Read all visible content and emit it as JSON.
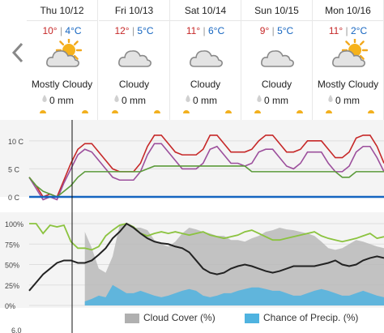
{
  "forecast": {
    "days": [
      {
        "name": "Thu 10/12",
        "high": "10°",
        "low": "4°C",
        "icon": "partly-cloudy-icon",
        "condition": "Mostly Cloudy",
        "precip": "0 mm"
      },
      {
        "name": "Fri 10/13",
        "high": "12°",
        "low": "5°C",
        "icon": "cloud-icon",
        "condition": "Cloudy",
        "precip": "0 mm"
      },
      {
        "name": "Sat 10/14",
        "high": "11°",
        "low": "6°C",
        "icon": "cloud-icon",
        "condition": "Cloudy",
        "precip": "0 mm"
      },
      {
        "name": "Sun 10/15",
        "high": "9°",
        "low": "5°C",
        "icon": "cloud-icon",
        "condition": "Cloudy",
        "precip": "0 mm"
      },
      {
        "name": "Mon 10/16",
        "high": "11°",
        "low": "2°C",
        "icon": "partly-cloudy-icon",
        "condition": "Mostly Cloudy",
        "precip": "0 mm"
      }
    ],
    "separator": "|"
  },
  "colors": {
    "temperature": "#c62828",
    "feels_like": "#9c4f9c",
    "dew_point": "#5b9a3a",
    "precip_line": "#1565c0",
    "cloud_fill": "#b8b8b8",
    "chance_fill": "#4fb3e0",
    "humidity": "#8bc33f",
    "black_line": "#222222",
    "high_temp": "#c62828",
    "low_temp": "#1565c0"
  },
  "chart_data": [
    {
      "type": "line",
      "y_tick_labels": [
        "10 C",
        "5 C",
        "0 C"
      ],
      "ylim": [
        0,
        12
      ],
      "days": [
        "Thu 10/12",
        "Fri 10/13",
        "Sat 10/14",
        "Sun 10/15",
        "Mon 10/16"
      ],
      "series": [
        {
          "values": [
            3.5,
            2,
            0,
            0.5,
            0,
            3,
            6,
            8.5,
            9.5,
            9.5,
            8,
            6.5,
            5,
            4.5,
            4.5,
            4.5,
            6,
            9,
            11,
            11,
            9.5,
            8,
            7.5,
            7.5,
            7.5,
            8.5,
            11,
            11,
            9.5,
            8,
            8,
            8,
            8.5,
            10,
            11,
            11,
            9.5,
            8,
            8,
            8.5,
            10,
            10,
            10,
            8.5,
            7,
            7,
            8,
            10.5,
            11,
            11,
            9,
            6
          ]
        },
        {
          "values": [
            3.5,
            1.5,
            -0.5,
            0,
            -0.5,
            2.5,
            5,
            7.5,
            8.5,
            8,
            6.5,
            5,
            3.5,
            3,
            3,
            3,
            4.5,
            7.5,
            9.5,
            9.5,
            8,
            6.5,
            5,
            5,
            5,
            6,
            8.5,
            9,
            7.5,
            6,
            6,
            5.5,
            6,
            8,
            8.5,
            8.5,
            7,
            5.5,
            5,
            6,
            8,
            8,
            8,
            6,
            4.5,
            4.5,
            5.5,
            8,
            9,
            9,
            7,
            4.5
          ]
        },
        {
          "values": [
            3.5,
            2,
            1,
            0.5,
            0,
            1,
            2,
            3.5,
            4.5,
            4.5,
            4.5,
            4.5,
            4.5,
            4.5,
            4.5,
            4.5,
            4.5,
            5,
            5.5,
            5.5,
            5.5,
            5.5,
            5.5,
            5.5,
            5.5,
            5.5,
            5.5,
            5.5,
            5.5,
            5.5,
            5.5,
            5.5,
            4.5,
            4.5,
            4.5,
            4.5,
            4.5,
            4.5,
            4.5,
            4.5,
            4.5,
            4.5,
            4.5,
            4.5,
            4.5,
            3.5,
            3.5,
            4.5,
            4.5,
            4.5,
            4.5,
            4.5
          ]
        },
        {
          "values": [
            0,
            0,
            0,
            0,
            0,
            0,
            0,
            0,
            0,
            0,
            0,
            0,
            0,
            0,
            0,
            0,
            0,
            0,
            0,
            0,
            0,
            0,
            0,
            0,
            0,
            0,
            0,
            0,
            0,
            0,
            0,
            0,
            0,
            0,
            0,
            0,
            0,
            0,
            0,
            0,
            0,
            0,
            0,
            0,
            0,
            0,
            0,
            0,
            0,
            0,
            0,
            0
          ]
        }
      ]
    },
    {
      "type": "area",
      "y_tick_labels": [
        "100%",
        "75%",
        "50%",
        "25%",
        "0%"
      ],
      "ylim": [
        0,
        100
      ],
      "series": [
        {
          "name": "Cloud Cover (%)",
          "values": [
            null,
            null,
            null,
            null,
            null,
            null,
            null,
            null,
            90,
            70,
            45,
            40,
            60,
            98,
            100,
            95,
            95,
            92,
            80,
            75,
            72,
            78,
            88,
            95,
            93,
            90,
            88,
            85,
            85,
            80,
            80,
            78,
            82,
            85,
            90,
            92,
            95,
            93,
            92,
            90,
            88,
            85,
            78,
            70,
            68,
            70,
            75,
            80,
            78,
            75,
            72,
            70
          ]
        },
        {
          "name": "Chance of Precip. (%)",
          "values": [
            null,
            null,
            null,
            null,
            null,
            null,
            null,
            null,
            5,
            8,
            12,
            10,
            25,
            20,
            15,
            15,
            18,
            15,
            12,
            10,
            12,
            15,
            18,
            20,
            18,
            12,
            10,
            12,
            15,
            15,
            18,
            20,
            22,
            22,
            20,
            18,
            18,
            15,
            12,
            12,
            15,
            18,
            20,
            18,
            15,
            12,
            12,
            15,
            18,
            15,
            12,
            10
          ]
        },
        {
          "values": [
            100,
            100,
            88,
            98,
            96,
            98,
            78,
            70,
            70,
            68,
            72,
            85,
            92,
            98,
            100,
            96,
            88,
            85,
            88,
            90,
            88,
            90,
            88,
            86,
            88,
            90,
            86,
            84,
            82,
            84,
            86,
            90,
            92,
            88,
            84,
            80,
            80,
            82,
            84,
            86,
            88,
            90,
            85,
            82,
            80,
            78,
            80,
            82,
            85,
            88,
            82,
            84
          ]
        },
        {
          "values": [
            18,
            28,
            38,
            45,
            52,
            55,
            55,
            52,
            52,
            55,
            62,
            70,
            82,
            90,
            100,
            95,
            88,
            82,
            78,
            76,
            75,
            72,
            70,
            65,
            55,
            45,
            40,
            38,
            40,
            45,
            48,
            50,
            48,
            45,
            42,
            40,
            42,
            45,
            48,
            48,
            48,
            48,
            50,
            52,
            55,
            50,
            48,
            50,
            55,
            58,
            60,
            58
          ]
        }
      ]
    }
  ],
  "legend": {
    "cloud_cover": "Cloud Cover (%)",
    "chance_precip": "Chance of Precip. (%)"
  },
  "bottom_axis_label": "6.0"
}
